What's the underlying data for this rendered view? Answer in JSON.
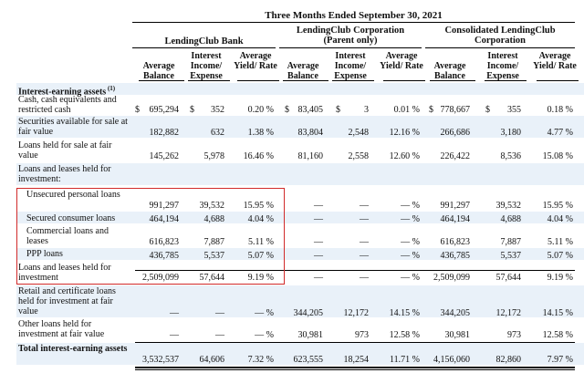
{
  "title": "Three Months Ended September 30, 2021",
  "groups": [
    {
      "name": "LendingClub Bank",
      "cols": [
        "Average Balance",
        "Interest Income/ Expense",
        "Average Yield/ Rate"
      ]
    },
    {
      "name": "LendingClub Corporation (Parent only)",
      "cols": [
        "Average Balance",
        "Interest Income/ Expense",
        "Average Yield/ Rate"
      ]
    },
    {
      "name": "Consolidated LendingClub Corporation",
      "cols": [
        "Average Balance",
        "Interest Income/ Expense",
        "Average Yield/ Rate"
      ]
    }
  ],
  "section_header": "Interest-earning assets",
  "section_footnote": "(1)",
  "rows": [
    {
      "label": "Cash, cash equivalents and restricted cash",
      "cells": [
        "695,294",
        "352",
        "0.20 %",
        "83,405",
        "3",
        "0.01 %",
        "778,667",
        "355",
        "0.18 %"
      ]
    },
    {
      "label": "Securities available for sale at fair value",
      "cells": [
        "182,882",
        "632",
        "1.38 %",
        "83,804",
        "2,548",
        "12.16 %",
        "266,686",
        "3,180",
        "4.77 %"
      ]
    },
    {
      "label": "Loans held for sale at fair value",
      "cells": [
        "145,262",
        "5,978",
        "16.46 %",
        "81,160",
        "2,558",
        "12.60 %",
        "226,422",
        "8,536",
        "15.08 %"
      ]
    },
    {
      "label": "Loans and leases held for investment:",
      "cells": []
    },
    {
      "label": "Unsecured personal loans",
      "cells": [
        "991,297",
        "39,532",
        "15.95 %",
        "—",
        "—",
        "— %",
        "991,297",
        "39,532",
        "15.95 %"
      ]
    },
    {
      "label": "Secured consumer loans",
      "cells": [
        "464,194",
        "4,688",
        "4.04 %",
        "—",
        "—",
        "— %",
        "464,194",
        "4,688",
        "4.04 %"
      ]
    },
    {
      "label": "Commercial loans and leases",
      "cells": [
        "616,823",
        "7,887",
        "5.11 %",
        "—",
        "—",
        "— %",
        "616,823",
        "7,887",
        "5.11 %"
      ]
    },
    {
      "label": "PPP loans",
      "cells": [
        "436,785",
        "5,537",
        "5.07 %",
        "—",
        "—",
        "— %",
        "436,785",
        "5,537",
        "5.07 %"
      ]
    },
    {
      "label": "Loans and leases held for investment",
      "cells": [
        "2,509,099",
        "57,644",
        "9.19 %",
        "—",
        "—",
        "— %",
        "2,509,099",
        "57,644",
        "9.19 %"
      ]
    },
    {
      "label": "Retail and certificate loans held for investment at fair value",
      "cells": [
        "—",
        "—",
        "— %",
        "344,205",
        "12,172",
        "14.15 %",
        "344,205",
        "12,172",
        "14.15 %"
      ]
    },
    {
      "label": "Other loans held for investment at fair value",
      "cells": [
        "—",
        "—",
        "— %",
        "30,981",
        "973",
        "12.58 %",
        "30,981",
        "973",
        "12.58 %"
      ]
    },
    {
      "label": "Total interest-earning assets",
      "cells": [
        "3,532,537",
        "64,606",
        "7.32 %",
        "623,555",
        "18,254",
        "11.71 %",
        "4,156,060",
        "82,860",
        "7.97 %"
      ]
    }
  ],
  "dollar_sign": "$",
  "highlight_color": "#d12a2a"
}
